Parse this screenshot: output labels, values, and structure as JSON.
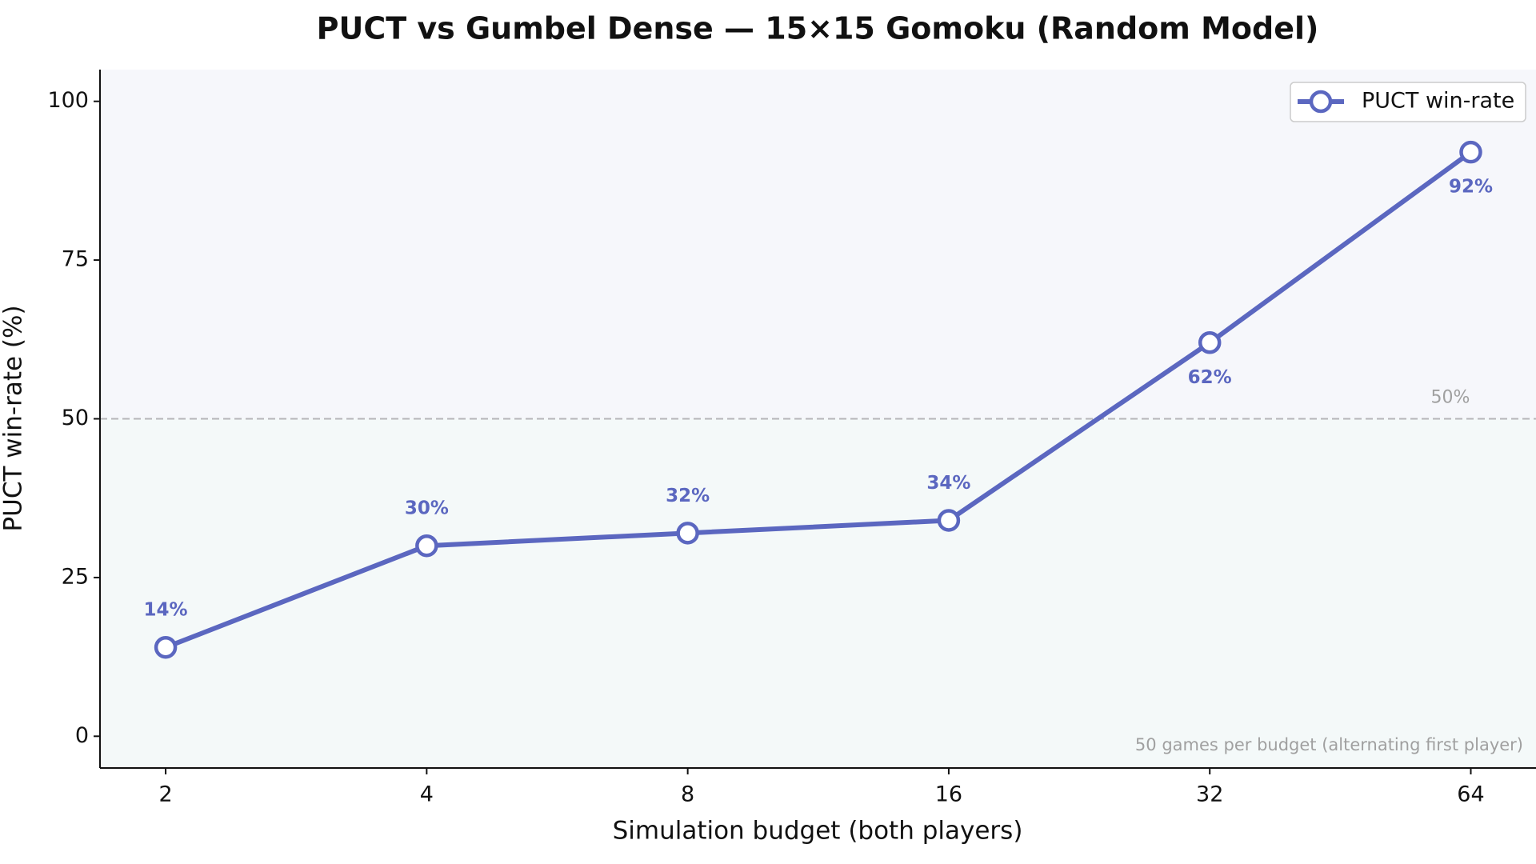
{
  "chart_data": {
    "type": "line",
    "title": "PUCT vs Gumbel Dense — 15×15 Gomoku (Random Model)",
    "x_label": "Simulation budget (both players)",
    "y_label": "PUCT win-rate (%)",
    "x": [
      2,
      4,
      8,
      16,
      32,
      64
    ],
    "xscale": "log2",
    "xlim": [
      1.68,
      76.1
    ],
    "xticks": [
      2,
      4,
      8,
      16,
      32,
      64
    ],
    "ylim": [
      -5,
      105
    ],
    "yticks": [
      0,
      25,
      50,
      75,
      100
    ],
    "series": [
      {
        "name": "PUCT win-rate",
        "color": "#5b67c0",
        "values": [
          14,
          30,
          32,
          34,
          62,
          92
        ],
        "value_labels": [
          "14%",
          "30%",
          "32%",
          "34%",
          "62%",
          "92%"
        ]
      }
    ],
    "reference_line": {
      "value": 50,
      "label": "50%"
    },
    "note": "50 games per budget (alternating first player)",
    "legend": "upper right"
  }
}
